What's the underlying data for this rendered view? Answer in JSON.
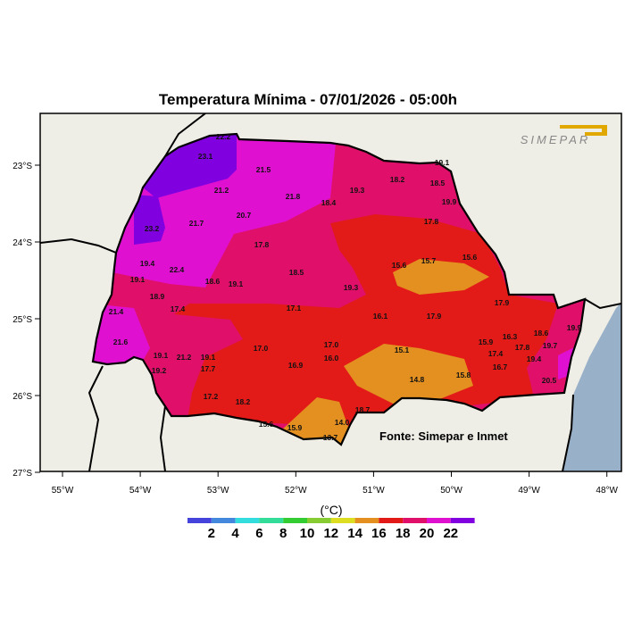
{
  "title": "Temperatura Mínima - 07/01/2026 - 05:00h",
  "logo": "SIMEPAR",
  "source": "Fonte: Simepar e Inmet",
  "legend": {
    "unit": "(°C)",
    "ticks": [
      "2",
      "4",
      "6",
      "8",
      "10",
      "12",
      "14",
      "16",
      "18",
      "20",
      "22"
    ],
    "colors": [
      "#4444dd",
      "#4488dd",
      "#33dddd",
      "#33dd99",
      "#33cc33",
      "#88cc33",
      "#dddd22",
      "#e39020",
      "#e21a18",
      "#e0106a",
      "#e010d0",
      "#8000e0"
    ]
  },
  "lon_ticks": [
    "55°W",
    "54°W",
    "53°W",
    "52°W",
    "51°W",
    "50°W",
    "49°W",
    "48°W"
  ],
  "lat_ticks": [
    "23°S",
    "24°S",
    "25°S",
    "26°S",
    "27°S"
  ],
  "stations": [
    "23.1",
    "22.2",
    "21.5",
    "21.2",
    "21.8",
    "18.4",
    "20.7",
    "21.7",
    "23.2",
    "17.8",
    "19.4",
    "22.4",
    "18.5",
    "19.1",
    "18.6",
    "19.1",
    "19.3",
    "19.1",
    "18.2",
    "19.3",
    "18.5",
    "19.9",
    "17.8",
    "15.6",
    "15.7",
    "15.6",
    "18.9",
    "17.4",
    "21.4",
    "17.1",
    "21.6",
    "19.1",
    "21.2",
    "19.1",
    "17.7",
    "19.2",
    "17.0",
    "16.9",
    "17.0",
    "16.0",
    "17.2",
    "18.2",
    "15.6",
    "15.9",
    "14.0",
    "18.7",
    "13.7",
    "17.9",
    "16.1",
    "17.9",
    "18.6",
    "19.9",
    "16.3",
    "15.9",
    "17.4",
    "17.8",
    "19.7",
    "19.4",
    "15.1",
    "16.7",
    "15.8",
    "14.8",
    "20.5"
  ]
}
